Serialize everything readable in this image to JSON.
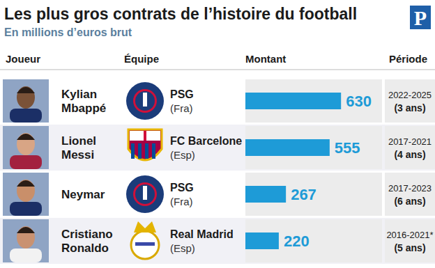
{
  "chart_data": {
    "type": "bar",
    "orientation": "horizontal",
    "title": "Les plus gros contrats de l’histoire du football",
    "subtitle": "En millions d’euros brut",
    "logo": "P",
    "columns": [
      "Joueur",
      "Équipe",
      "Montant",
      "Période"
    ],
    "categories": [
      "Kylian Mbappé",
      "Lionel Messi",
      "Neymar",
      "Cristiano Ronaldo"
    ],
    "teams": [
      "PSG",
      "FC Barcelone",
      "PSG",
      "Real Madrid"
    ],
    "countries": [
      "(Fra)",
      "(Esp)",
      "(Fra)",
      "(Esp)"
    ],
    "periods": [
      "2022-2025",
      "2017-2021",
      "2017-2023",
      "2016-2021*"
    ],
    "durations": [
      "(3 ans)",
      "(4 ans)",
      "(6 ans)",
      "(5 ans)"
    ],
    "values": [
      630,
      555,
      267,
      220
    ],
    "color": "#1e9bd7",
    "xlim": [
      0,
      900
    ],
    "data_labels": true,
    "tick_labels": false
  }
}
